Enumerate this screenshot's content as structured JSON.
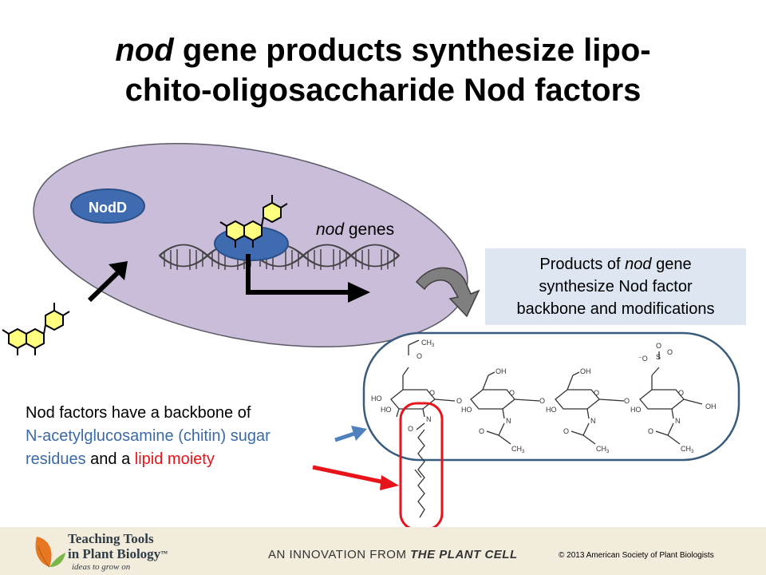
{
  "title": {
    "em": "nod",
    "line1_rest": " gene products synthesize lipo-",
    "line2": "chito-oligosaccharide Nod factors"
  },
  "labels": {
    "nodd": "NodD",
    "nod_genes_em": "nod",
    "nod_genes_rest": " genes"
  },
  "caption": {
    "line1_pre": "Products of ",
    "line1_em": "nod",
    "line1_post": " gene",
    "line2": "synthesize Nod factor",
    "line3": "backbone and modifications"
  },
  "bottom_text": {
    "line1": "Nod factors have a backbone of",
    "blue_part": "N-acetylglucosamine (chitin) sugar residues",
    "and": " and a ",
    "red_part": "lipid moiety"
  },
  "structure_labels": {
    "ho": "HO",
    "oh": "OH",
    "o": "O",
    "n": "N",
    "ch3": "CH",
    "sub3": "3",
    "s": "S",
    "o_minus": "⁻O"
  },
  "footer": {
    "tt_line1": "Teaching Tools",
    "tt_line2": "in Plant Biology",
    "tm": "™",
    "tagline": "ideas to grow on",
    "innovation_pre": "AN INNOVATION FROM ",
    "innovation_bold": "THE PLANT CELL",
    "copyright": "© 2013 American Society of Plant Biologists"
  },
  "colors": {
    "cell": "#c9bdd9",
    "cell_stroke": "#5b5b66",
    "nodd_fill": "#3f6cb0",
    "hexagon": "#ffff80",
    "blue_text": "#3a6aa8",
    "red": "#e8141b",
    "caption_bg": "#dde6f1",
    "footer_bg": "#f2ecdc"
  }
}
